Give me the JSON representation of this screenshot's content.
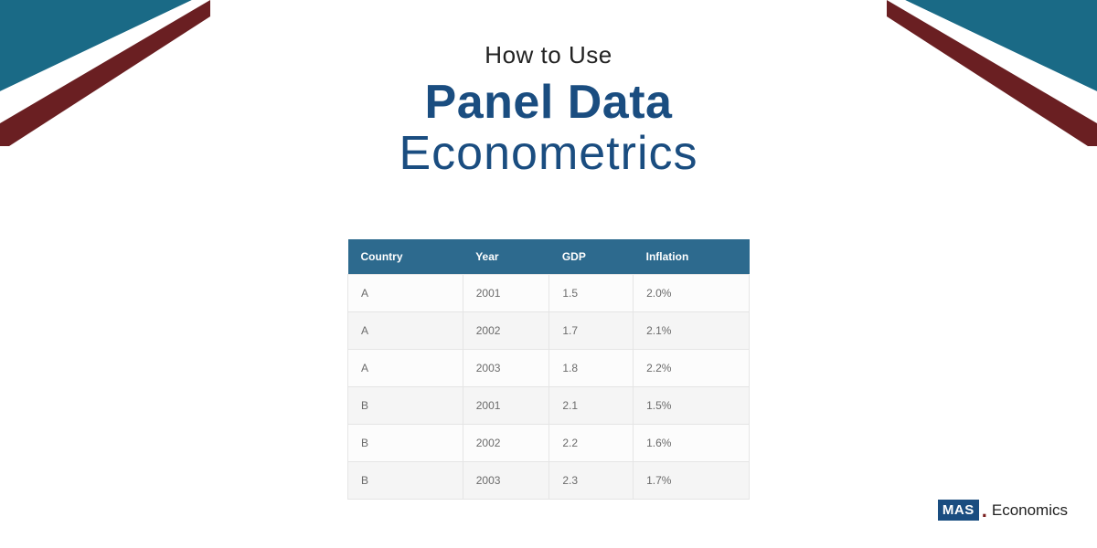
{
  "colors": {
    "teal": "#1a6a86",
    "maroon": "#6a1f22",
    "white": "#ffffff",
    "title_blue": "#1a4d80",
    "text_dark": "#222222",
    "table_header_bg": "#2d6a8e",
    "table_border": "#e5e5e5",
    "table_text": "#6b6b6b",
    "row_alt_bg": "#f5f5f5"
  },
  "title": {
    "line1": "How to Use",
    "line2": "Panel Data",
    "line3": "Econometrics"
  },
  "table": {
    "columns": [
      "Country",
      "Year",
      "GDP",
      "Inflation"
    ],
    "rows": [
      [
        "A",
        "2001",
        "1.5",
        "2.0%"
      ],
      [
        "A",
        "2002",
        "1.7",
        "2.1%"
      ],
      [
        "A",
        "2003",
        "1.8",
        "2.2%"
      ],
      [
        "B",
        "2001",
        "2.1",
        "1.5%"
      ],
      [
        "B",
        "2002",
        "2.2",
        "1.6%"
      ],
      [
        "B",
        "2003",
        "2.3",
        "1.7%"
      ]
    ]
  },
  "logo": {
    "box": "MAS",
    "text": "Economics"
  }
}
